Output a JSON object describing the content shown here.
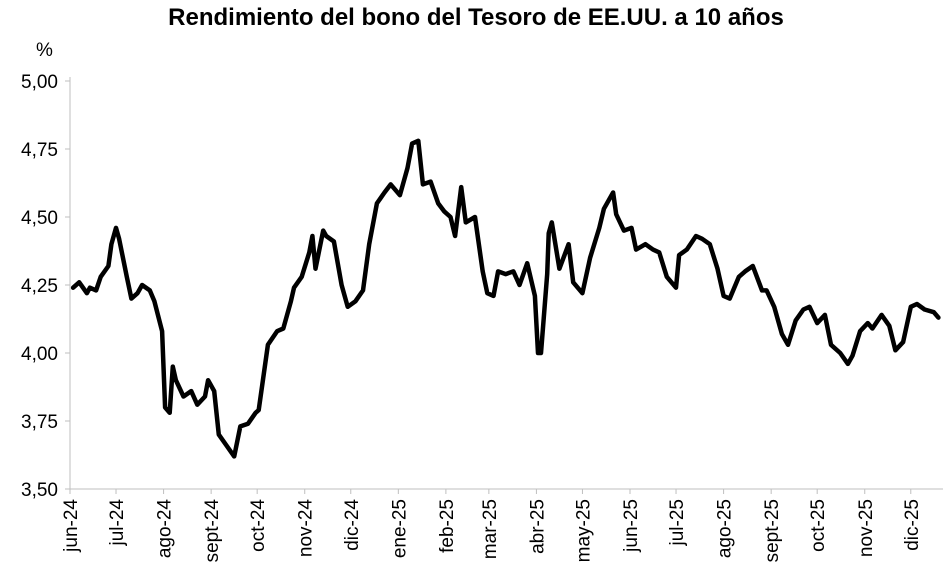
{
  "chart_data": {
    "type": "line",
    "title": "Rendimiento del bono del Tesoro de EE.UU. a 10 años",
    "ylabel": "%",
    "xlabel": "",
    "ylim": [
      3.5,
      5.0
    ],
    "yticks": [
      "3,50",
      "3,75",
      "4,00",
      "4,25",
      "4,50",
      "4,75",
      "5,00"
    ],
    "ytick_values": [
      3.5,
      3.75,
      4.0,
      4.25,
      4.5,
      4.75,
      5.0
    ],
    "xticks": [
      "jun-24",
      "jul-24",
      "ago-24",
      "sept-24",
      "oct-24",
      "nov-24",
      "dic-24",
      "ene-25",
      "feb-25",
      "mar-25",
      "abr-25",
      "may-25",
      "jun-25",
      "jul-25",
      "ago-25",
      "sept-25",
      "oct-25",
      "nov-25",
      "dic-25"
    ],
    "grid": false,
    "legend": "none",
    "line_color": "#000000",
    "series": [
      {
        "x": [
          "2024-06-03",
          "2024-06-07",
          "2024-06-12",
          "2024-06-14",
          "2024-06-18",
          "2024-06-21",
          "2024-06-26",
          "2024-06-28",
          "2024-07-01",
          "2024-07-03",
          "2024-07-08",
          "2024-07-11",
          "2024-07-15",
          "2024-07-18",
          "2024-07-23",
          "2024-07-26",
          "2024-07-31",
          "2024-08-02",
          "2024-08-05",
          "2024-08-07",
          "2024-08-09",
          "2024-08-14",
          "2024-08-19",
          "2024-08-23",
          "2024-08-28",
          "2024-08-30",
          "2024-09-03",
          "2024-09-06",
          "2024-09-11",
          "2024-09-16",
          "2024-09-20",
          "2024-09-25",
          "2024-09-30",
          "2024-10-02",
          "2024-10-08",
          "2024-10-14",
          "2024-10-18",
          "2024-10-23",
          "2024-10-25",
          "2024-10-30",
          "2024-11-04",
          "2024-11-06",
          "2024-11-08",
          "2024-11-13",
          "2024-11-15",
          "2024-11-20",
          "2024-11-25",
          "2024-11-29",
          "2024-12-04",
          "2024-12-09",
          "2024-12-13",
          "2024-12-18",
          "2024-12-23",
          "2024-12-27",
          "2025-01-02",
          "2025-01-07",
          "2025-01-10",
          "2025-01-14",
          "2025-01-17",
          "2025-01-22",
          "2025-01-27",
          "2025-01-31",
          "2025-02-04",
          "2025-02-07",
          "2025-02-11",
          "2025-02-14",
          "2025-02-20",
          "2025-02-25",
          "2025-02-28",
          "2025-03-04",
          "2025-03-07",
          "2025-03-12",
          "2025-03-17",
          "2025-03-21",
          "2025-03-26",
          "2025-03-31",
          "2025-04-02",
          "2025-04-04",
          "2025-04-08",
          "2025-04-09",
          "2025-04-11",
          "2025-04-16",
          "2025-04-22",
          "2025-04-25",
          "2025-05-01",
          "2025-05-06",
          "2025-05-12",
          "2025-05-15",
          "2025-05-21",
          "2025-05-23",
          "2025-05-28",
          "2025-06-02",
          "2025-06-05",
          "2025-06-11",
          "2025-06-16",
          "2025-06-20",
          "2025-06-25",
          "2025-07-01",
          "2025-07-03",
          "2025-07-08",
          "2025-07-14",
          "2025-07-18",
          "2025-07-23",
          "2025-07-28",
          "2025-08-01",
          "2025-08-05",
          "2025-08-11",
          "2025-08-15",
          "2025-08-20",
          "2025-08-26",
          "2025-08-29",
          "2025-09-03",
          "2025-09-08",
          "2025-09-12",
          "2025-09-17",
          "2025-09-22",
          "2025-09-26",
          "2025-10-01",
          "2025-10-06",
          "2025-10-10",
          "2025-10-16",
          "2025-10-21",
          "2025-10-24",
          "2025-10-29",
          "2025-11-03",
          "2025-11-06",
          "2025-11-12",
          "2025-11-17",
          "2025-11-21",
          "2025-11-26",
          "2025-12-01",
          "2025-12-05",
          "2025-12-10",
          "2025-12-16",
          "2025-12-19"
        ],
        "y": [
          4.24,
          4.26,
          4.22,
          4.24,
          4.23,
          4.28,
          4.32,
          4.4,
          4.46,
          4.42,
          4.28,
          4.2,
          4.22,
          4.25,
          4.23,
          4.19,
          4.08,
          3.8,
          3.78,
          3.95,
          3.9,
          3.84,
          3.86,
          3.81,
          3.84,
          3.9,
          3.86,
          3.7,
          3.66,
          3.62,
          3.73,
          3.74,
          3.78,
          3.79,
          4.03,
          4.08,
          4.09,
          4.19,
          4.24,
          4.28,
          4.37,
          4.43,
          4.31,
          4.45,
          4.43,
          4.41,
          4.25,
          4.17,
          4.19,
          4.23,
          4.4,
          4.55,
          4.59,
          4.62,
          4.58,
          4.68,
          4.77,
          4.78,
          4.62,
          4.63,
          4.55,
          4.52,
          4.5,
          4.43,
          4.61,
          4.48,
          4.5,
          4.3,
          4.22,
          4.21,
          4.3,
          4.29,
          4.3,
          4.25,
          4.33,
          4.21,
          4.0,
          4.0,
          4.29,
          4.44,
          4.48,
          4.31,
          4.4,
          4.26,
          4.22,
          4.35,
          4.46,
          4.53,
          4.59,
          4.51,
          4.45,
          4.46,
          4.38,
          4.4,
          4.38,
          4.37,
          4.28,
          4.24,
          4.36,
          4.38,
          4.43,
          4.42,
          4.4,
          4.31,
          4.21,
          4.2,
          4.28,
          4.3,
          4.32,
          4.23,
          4.23,
          4.17,
          4.07,
          4.03,
          4.12,
          4.16,
          4.17,
          4.11,
          4.14,
          4.03,
          4.0,
          3.96,
          3.99,
          4.08,
          4.11,
          4.09,
          4.14,
          4.1,
          4.01,
          4.04,
          4.17,
          4.18,
          4.16,
          4.15,
          4.13
        ]
      }
    ]
  }
}
